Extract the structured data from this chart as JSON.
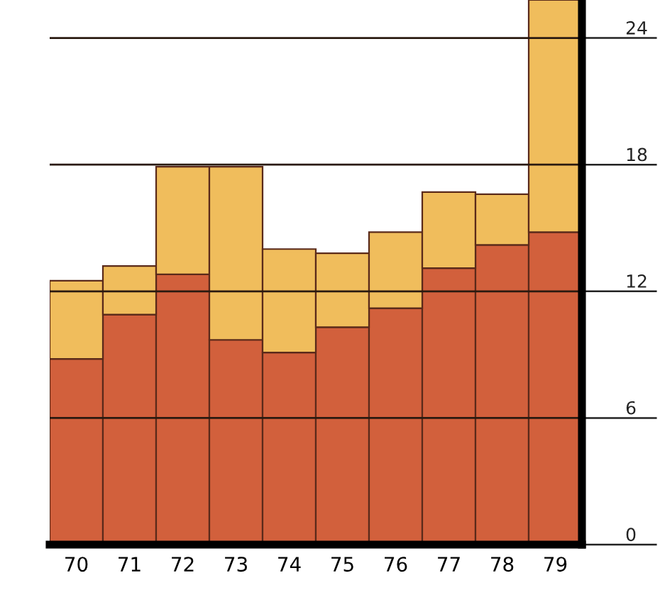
{
  "chart_data": {
    "type": "bar",
    "stacked": true,
    "categories": [
      "70",
      "71",
      "72",
      "73",
      "74",
      "75",
      "76",
      "77",
      "78",
      "79"
    ],
    "series": [
      {
        "color": "#d2603c",
        "values": [
          8.8,
          10.9,
          12.8,
          9.7,
          9.1,
          10.3,
          11.2,
          13.1,
          14.2,
          14.8
        ]
      },
      {
        "color": "#f0bd5c",
        "values": [
          3.7,
          2.3,
          5.1,
          8.2,
          4.9,
          3.5,
          3.6,
          3.6,
          2.4,
          11.0
        ]
      }
    ],
    "ylim": [
      0,
      25.8
    ],
    "yticks": [
      0,
      6,
      12,
      18,
      24
    ],
    "grid": "y"
  }
}
